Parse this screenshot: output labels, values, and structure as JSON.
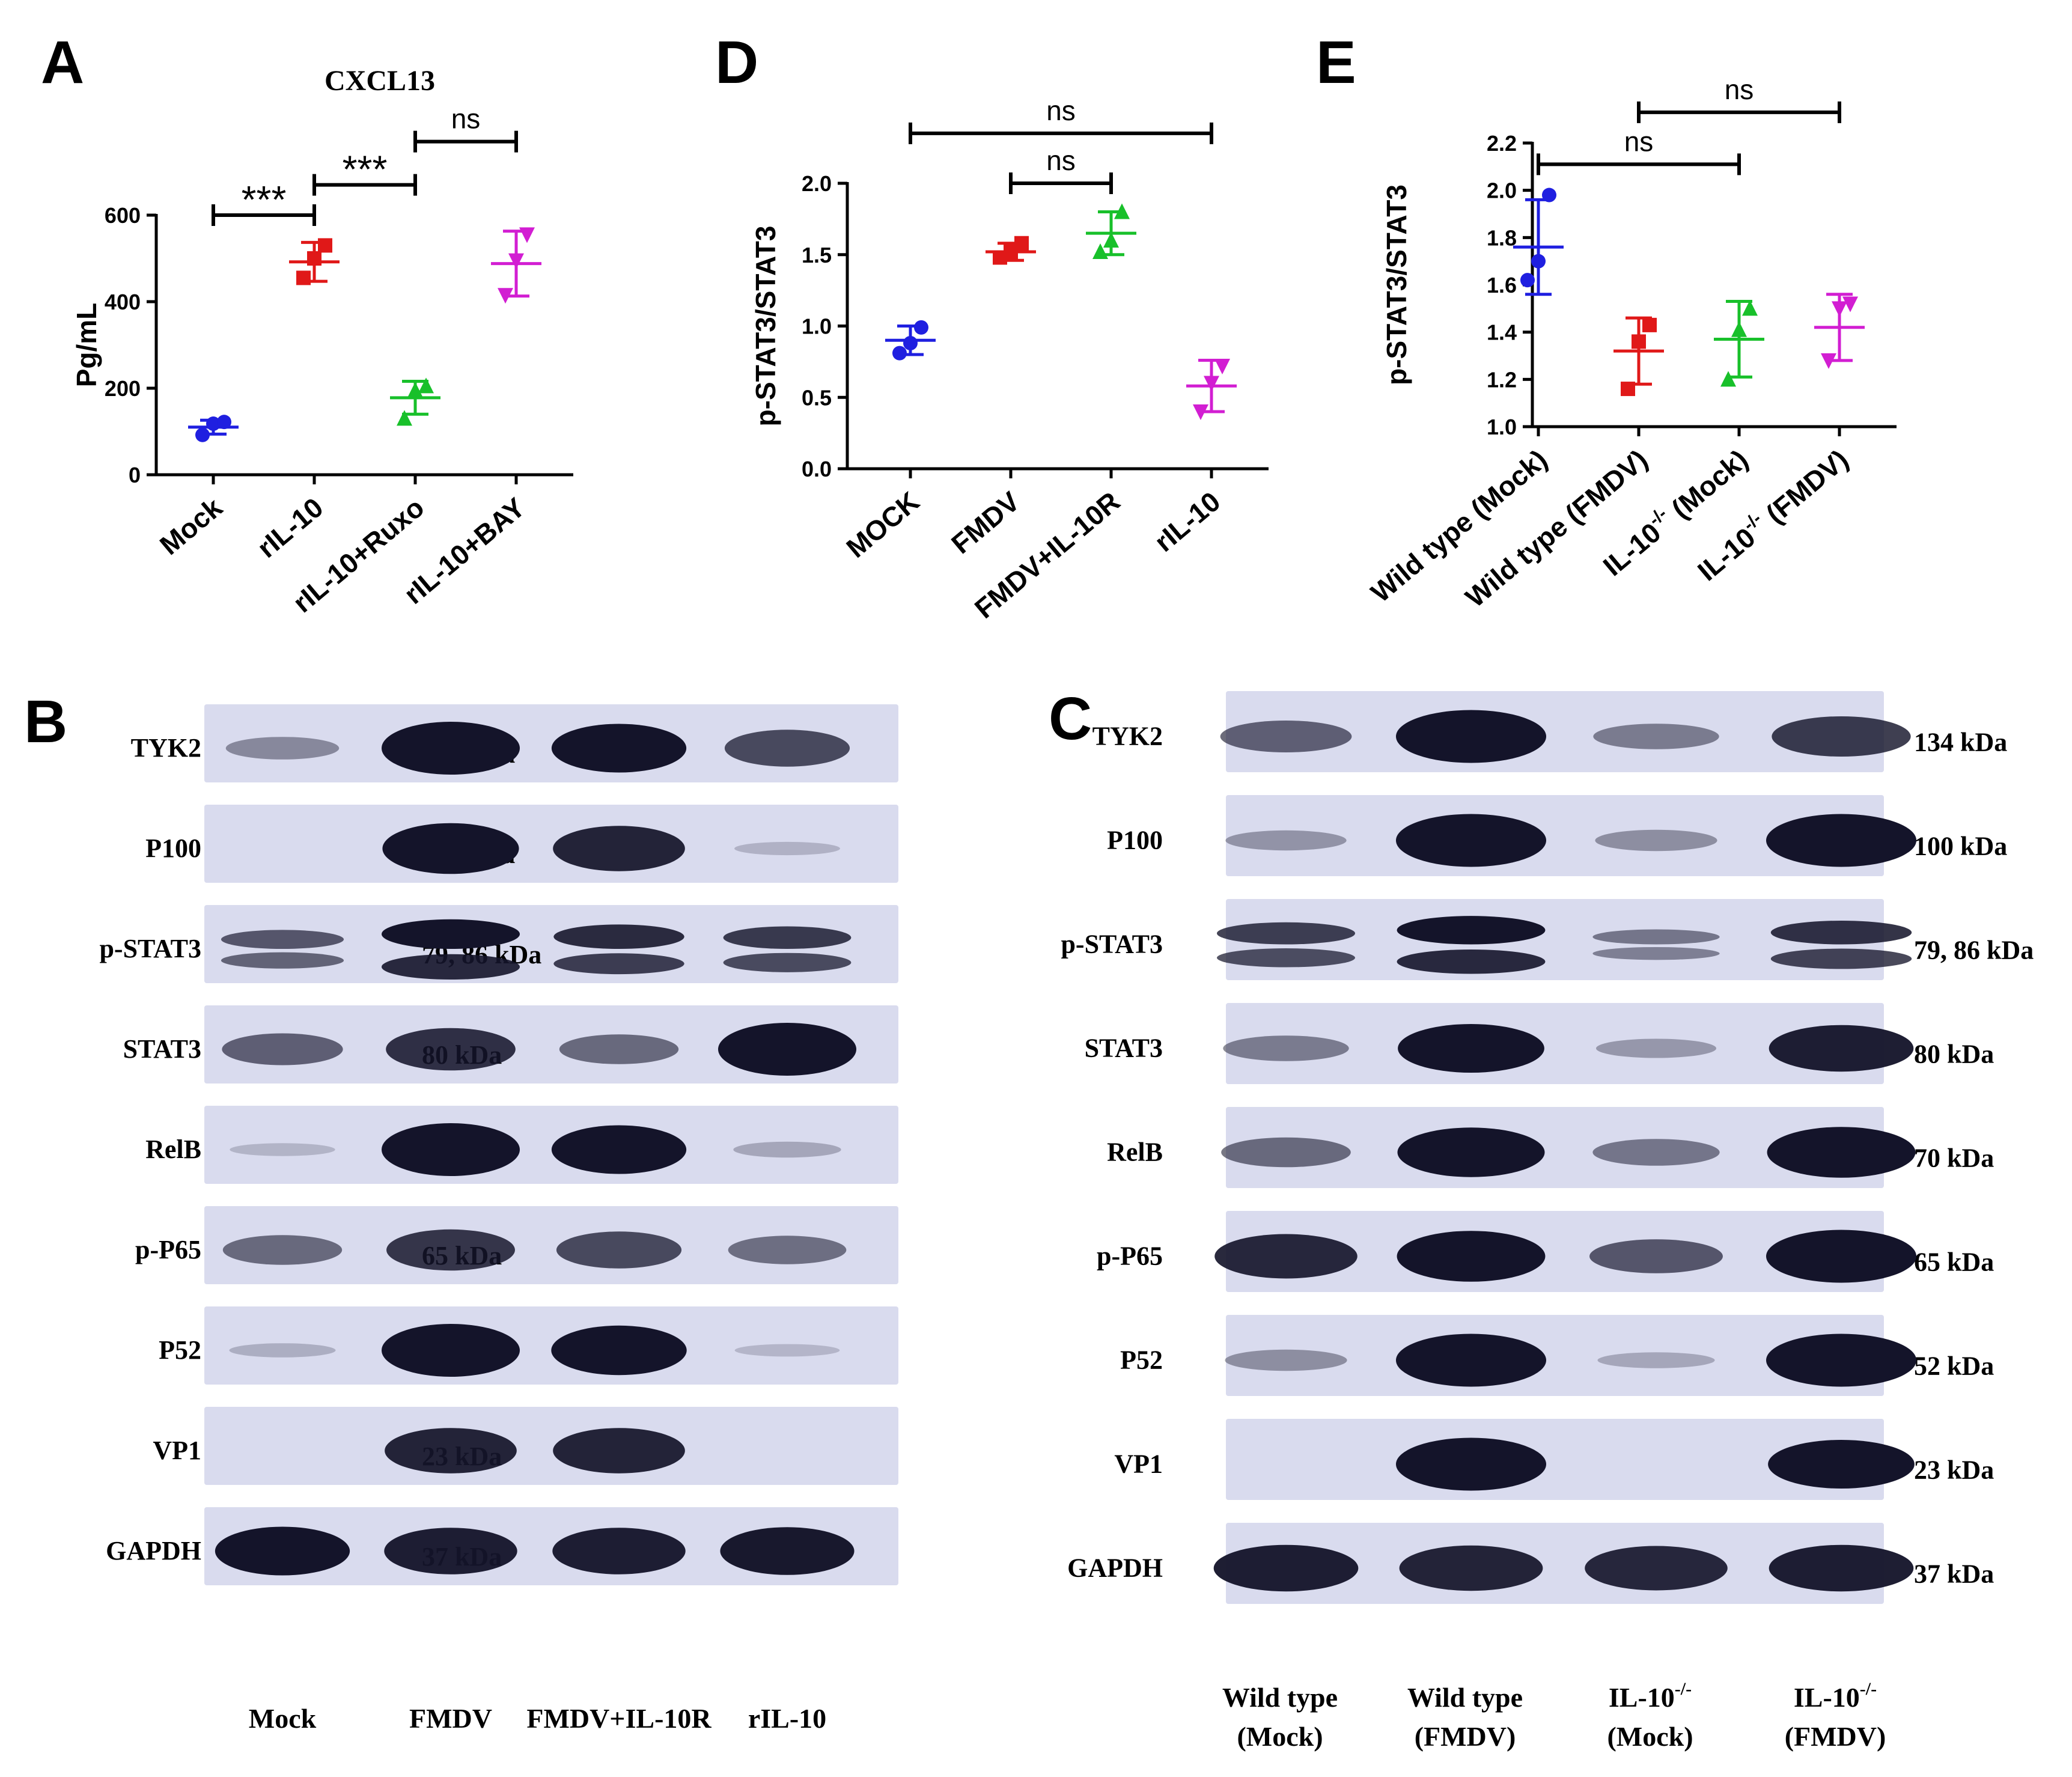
{
  "panels": {
    "A": "A",
    "B": "B",
    "C": "C",
    "D": "D",
    "E": "E"
  },
  "colors": {
    "blue": "#1f1fe0",
    "red": "#e01818",
    "green": "#18c02a",
    "magenta": "#d21ed2",
    "axis": "#000000",
    "band": "#14142a",
    "membrane": "#d9dbee"
  },
  "chart_data": [
    {
      "panel": "A",
      "type": "scatter",
      "title": "CXCL13",
      "ylabel": "Pg/mL",
      "xlabel": "",
      "ylim": [
        0,
        600
      ],
      "yticks": [
        "0",
        "200",
        "400",
        "600"
      ],
      "grid": false,
      "categories": [
        "Mock",
        "rIL-10",
        "rIL-10+Ruxo",
        "rIL-10+BAY"
      ],
      "series": [
        {
          "marker": "circle",
          "color": "#1f1fe0",
          "points": [
            92,
            118,
            122
          ],
          "mean": 110,
          "sd": 16
        },
        {
          "marker": "square",
          "color": "#e01818",
          "points": [
            455,
            500,
            530
          ],
          "mean": 492,
          "sd": 45
        },
        {
          "marker": "triangle-up",
          "color": "#18c02a",
          "points": [
            130,
            195,
            205
          ],
          "mean": 178,
          "sd": 38
        },
        {
          "marker": "triangle-down",
          "color": "#d21ed2",
          "points": [
            415,
            495,
            555
          ],
          "mean": 488,
          "sd": 75
        }
      ],
      "significance": [
        {
          "from": 0,
          "to": 1,
          "label": "***",
          "y": 600
        },
        {
          "from": 1,
          "to": 2,
          "label": "***",
          "y": 670
        },
        {
          "from": 2,
          "to": 3,
          "label": "ns",
          "y": 770
        }
      ]
    },
    {
      "panel": "D",
      "type": "scatter",
      "ylabel": "p-STAT3/STAT3",
      "xlabel": "",
      "ylim": [
        0,
        2.0
      ],
      "yticks": [
        "0.0",
        "0.5",
        "1.0",
        "1.5",
        "2.0"
      ],
      "grid": false,
      "categories": [
        "MOCK",
        "FMDV",
        "FMDV+IL-10R",
        "rIL-10"
      ],
      "series": [
        {
          "marker": "circle",
          "color": "#1f1fe0",
          "points": [
            0.81,
            0.88,
            0.99
          ],
          "mean": 0.9,
          "sd": 0.1
        },
        {
          "marker": "square",
          "color": "#e01818",
          "points": [
            1.48,
            1.52,
            1.58
          ],
          "mean": 1.52,
          "sd": 0.06
        },
        {
          "marker": "triangle-up",
          "color": "#18c02a",
          "points": [
            1.52,
            1.6,
            1.8
          ],
          "mean": 1.65,
          "sd": 0.15
        },
        {
          "marker": "triangle-down",
          "color": "#d21ed2",
          "points": [
            0.4,
            0.6,
            0.72
          ],
          "mean": 0.58,
          "sd": 0.18
        }
      ],
      "significance": [
        {
          "from": 0,
          "to": 3,
          "label": "ns",
          "y": 2.35
        },
        {
          "from": 1,
          "to": 2,
          "label": "ns",
          "y": 2.0
        }
      ]
    },
    {
      "panel": "E",
      "type": "scatter",
      "ylabel": "p-STAT3/STAT3",
      "xlabel": "",
      "ylim": [
        1.0,
        2.2
      ],
      "yticks": [
        "1.0",
        "1.2",
        "1.4",
        "1.6",
        "1.8",
        "2.0",
        "2.2"
      ],
      "grid": false,
      "categories": [
        "Wild type (Mock)",
        "Wild type (FMDV)",
        "IL-10",
        "IL-10"
      ],
      "category_prefix": [
        "Wild type (Mock)",
        "Wild type (FMDV)",
        "IL-10",
        "IL-10"
      ],
      "category_sup": [
        "",
        "",
        "-/-",
        "-/-"
      ],
      "category_suffix": [
        "",
        "",
        " (Mock)",
        " (FMDV)"
      ],
      "series": [
        {
          "marker": "circle",
          "color": "#1f1fe0",
          "points": [
            1.62,
            1.7,
            1.98
          ],
          "mean": 1.76,
          "sd": 0.2
        },
        {
          "marker": "square",
          "color": "#e01818",
          "points": [
            1.16,
            1.36,
            1.43
          ],
          "mean": 1.32,
          "sd": 0.14
        },
        {
          "marker": "triangle-up",
          "color": "#18c02a",
          "points": [
            1.2,
            1.41,
            1.5
          ],
          "mean": 1.37,
          "sd": 0.16
        },
        {
          "marker": "triangle-down",
          "color": "#d21ed2",
          "points": [
            1.28,
            1.5,
            1.52
          ],
          "mean": 1.42,
          "sd": 0.14
        }
      ],
      "significance": [
        {
          "from": 0,
          "to": 2,
          "label": "ns",
          "y": 2.11
        },
        {
          "from": 1,
          "to": 3,
          "label": "ns",
          "y": 2.33
        }
      ]
    }
  ],
  "blots": [
    {
      "panel": "B",
      "rows": [
        {
          "protein": "TYK2",
          "size": "134 kDa",
          "intensity": [
            0.28,
            1.0,
            0.9,
            0.62
          ],
          "doublet": false
        },
        {
          "protein": "P100",
          "size": "100 kDa",
          "intensity": [
            0.0,
            0.95,
            0.82,
            0.06
          ],
          "doublet": false
        },
        {
          "protein": "p-STAT3",
          "size": "79, 86 kDa",
          "intensity": [
            0.55,
            1.0,
            0.78,
            0.7
          ],
          "doublet": true
        },
        {
          "protein": "STAT3",
          "size": "80 kDa",
          "intensity": [
            0.5,
            0.75,
            0.45,
            1.0
          ],
          "doublet": false
        },
        {
          "protein": "RelB",
          "size": "70 kDa",
          "intensity": [
            0.05,
            1.0,
            0.9,
            0.12
          ],
          "doublet": false
        },
        {
          "protein": "p-P65",
          "size": "65 kDa",
          "intensity": [
            0.45,
            0.72,
            0.62,
            0.42
          ],
          "doublet": false
        },
        {
          "protein": "P52",
          "size": "52 kDa",
          "intensity": [
            0.08,
            1.0,
            0.92,
            0.04
          ],
          "doublet": false
        },
        {
          "protein": "VP1",
          "size": "23 kDa",
          "intensity": [
            0.0,
            0.82,
            0.82,
            0.0
          ],
          "doublet": false
        },
        {
          "protein": "GAPDH",
          "size": "37 kDa",
          "intensity": [
            0.9,
            0.85,
            0.85,
            0.88
          ],
          "doublet": false
        }
      ],
      "lanes": [
        {
          "line1": "Mock",
          "line2": ""
        },
        {
          "line1": "FMDV",
          "line2": ""
        },
        {
          "line1": "FMDV+IL-10R",
          "line2": ""
        },
        {
          "line1": "rIL-10",
          "line2": ""
        }
      ]
    },
    {
      "panel": "C",
      "rows": [
        {
          "protein": "TYK2",
          "size": "134 kDa",
          "intensity": [
            0.5,
            1.0,
            0.35,
            0.7
          ],
          "doublet": false
        },
        {
          "protein": "P100",
          "size": "100 kDa",
          "intensity": [
            0.22,
            1.0,
            0.25,
            1.0
          ],
          "doublet": false
        },
        {
          "protein": "p-STAT3",
          "size": "79, 86 kDa",
          "intensity": [
            0.68,
            0.95,
            0.38,
            0.75
          ],
          "doublet": true
        },
        {
          "protein": "STAT3",
          "size": "80 kDa",
          "intensity": [
            0.35,
            0.9,
            0.2,
            0.85
          ],
          "doublet": false
        },
        {
          "protein": "RelB",
          "size": "70 kDa",
          "intensity": [
            0.45,
            0.92,
            0.38,
            0.95
          ],
          "doublet": false
        },
        {
          "protein": "p-P65",
          "size": "65 kDa",
          "intensity": [
            0.8,
            0.95,
            0.55,
            1.0
          ],
          "doublet": false
        },
        {
          "protein": "P52",
          "size": "52 kDa",
          "intensity": [
            0.25,
            1.0,
            0.12,
            1.0
          ],
          "doublet": false
        },
        {
          "protein": "VP1",
          "size": "23 kDa",
          "intensity": [
            0.0,
            1.0,
            0.0,
            0.9
          ],
          "doublet": false
        },
        {
          "protein": "GAPDH",
          "size": "37 kDa",
          "intensity": [
            0.85,
            0.82,
            0.8,
            0.85
          ],
          "doublet": false
        }
      ],
      "lanes": [
        {
          "line1": "Wild type",
          "line2": "(Mock)",
          "sup": ""
        },
        {
          "line1": "Wild type",
          "line2": "(FMDV)",
          "sup": ""
        },
        {
          "line1": "IL-10",
          "line2": "(Mock)",
          "sup": "-/-"
        },
        {
          "line1": "IL-10",
          "line2": "(FMDV)",
          "sup": "-/-"
        }
      ]
    }
  ]
}
